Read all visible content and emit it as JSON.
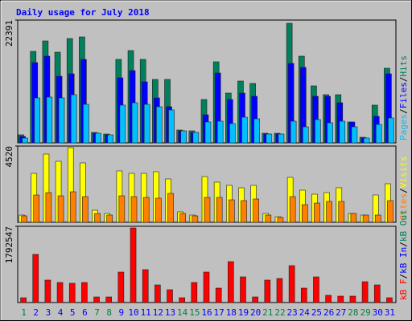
{
  "chart_data": [
    {
      "type": "bar",
      "title": "Daily usage for July 2018",
      "ylim": [
        0,
        22391
      ],
      "yticks": [
        22391
      ],
      "legend_separator": "/",
      "series": [
        {
          "name": "Hits",
          "color": "#00805c",
          "values": [
            1464,
            16684,
            18586,
            16537,
            19025,
            19318,
            1903,
            1610,
            15220,
            16830,
            15220,
            11562,
            11562,
            2342,
            2195,
            7903,
            14781,
            9074,
            11269,
            10830,
            1756,
            1756,
            21806,
            15806,
            10391,
            8781,
            8781,
            3805,
            1024,
            6878,
            13610
          ]
        },
        {
          "name": "Files",
          "color": "#0000ff",
          "values": [
            1171,
            14635,
            15806,
            12147,
            12586,
            15220,
            1756,
            1464,
            11854,
            13172,
            11123,
            8196,
            6586,
            2195,
            1903,
            5122,
            12732,
            7903,
            9074,
            8488,
            1610,
            1610,
            14489,
            13757,
            8488,
            8488,
            7318,
            3805,
            878,
            4830,
            12586
          ]
        },
        {
          "name": "Pages",
          "color": "#00c0ff",
          "values": [
            878,
            8196,
            8342,
            8196,
            8781,
            7025,
            1756,
            1464,
            6878,
            7318,
            7025,
            6586,
            6000,
            2195,
            1903,
            3805,
            3951,
            3512,
            4683,
            4391,
            1610,
            1610,
            3951,
            2927,
            4244,
            3659,
            3951,
            2927,
            878,
            3366,
            4537
          ]
        }
      ]
    },
    {
      "type": "bar",
      "ylim": [
        0,
        4520
      ],
      "yticks": [
        4520
      ],
      "legend_separator": "/",
      "series": [
        {
          "name": "Visits",
          "color": "#ffff00",
          "values": [
            428,
            2902,
            4044,
            3616,
            4425,
            3521,
            714,
            523,
            3045,
            2902,
            2902,
            2998,
            2569,
            619,
            428,
            2712,
            2379,
            2189,
            2046,
            2189,
            523,
            333,
            2664,
            1903,
            1665,
            1760,
            2046,
            523,
            428,
            1618,
            2284
          ]
        },
        {
          "name": "Sites",
          "color": "#ff8000",
          "values": [
            381,
            1618,
            1760,
            1570,
            1808,
            1523,
            523,
            428,
            1570,
            1523,
            1475,
            1427,
            1713,
            523,
            381,
            1475,
            1475,
            1332,
            1285,
            1380,
            428,
            285,
            1523,
            1047,
            1142,
            1237,
            1237,
            523,
            428,
            428,
            1285
          ]
        }
      ]
    },
    {
      "type": "bar",
      "ylim": [
        0,
        1792547
      ],
      "yticks": [
        1792547
      ],
      "legend_separator": "/",
      "categories": [
        "1",
        "2",
        "3",
        "4",
        "5",
        "6",
        "7",
        "8",
        "9",
        "10",
        "11",
        "12",
        "13",
        "14",
        "15",
        "16",
        "17",
        "18",
        "19",
        "20",
        "21",
        "22",
        "23",
        "24",
        "25",
        "26",
        "27",
        "28",
        "29",
        "30",
        "31"
      ],
      "category_colors": [
        "#008040",
        "#0000ff",
        "#0000ff",
        "#0000ff",
        "#0000ff",
        "#0000ff",
        "#008040",
        "#008040",
        "#0000ff",
        "#0000ff",
        "#0000ff",
        "#0000ff",
        "#0000ff",
        "#008040",
        "#008040",
        "#0000ff",
        "#0000ff",
        "#0000ff",
        "#0000ff",
        "#0000ff",
        "#008040",
        "#008040",
        "#0000ff",
        "#0000ff",
        "#0000ff",
        "#0000ff",
        "#0000ff",
        "#008040",
        "#008040",
        "#0000ff",
        "#0000ff"
      ],
      "series": [
        {
          "name": "kB F",
          "color": "#ff0000",
          "values": [
            113214,
            1132140,
            528332,
            471725,
            452856,
            471725,
            132083,
            132083,
            717022,
            1754817,
            773629,
            415118,
            301904,
            113214,
            471725,
            717022,
            339642,
            962319,
            603808,
            132083,
            528332,
            566070,
            867974,
            339642,
            603808,
            169821,
            150952,
            150952,
            490594,
            415118,
            113214
          ]
        }
      ],
      "extra_legend": [
        {
          "name": "kB In",
          "color": "#0000ff"
        },
        {
          "name": "kB Out",
          "color": "#00805c"
        }
      ]
    }
  ]
}
